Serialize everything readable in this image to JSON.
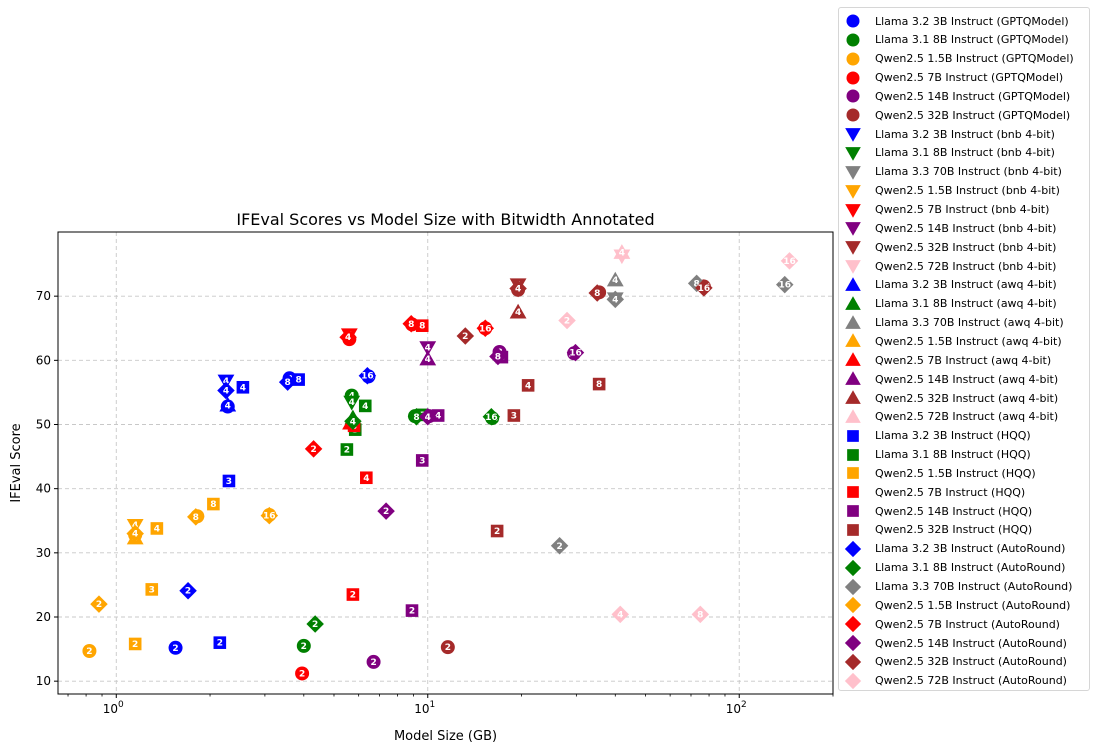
{
  "chart_data": {
    "type": "scatter",
    "title": "IFEval Scores vs Model Size with Bitwidth Annotated",
    "xlabel": "Model Size (GB)",
    "ylabel": "IFEval Score",
    "x_scale": "log",
    "xlim": [
      0.65,
      200
    ],
    "ylim": [
      8,
      80
    ],
    "x_ticks": [
      {
        "value": 1,
        "label": "10",
        "exp": "0"
      },
      {
        "value": 10,
        "label": "10",
        "exp": "1"
      },
      {
        "value": 100,
        "label": "10",
        "exp": "2"
      }
    ],
    "y_ticks": [
      10,
      20,
      30,
      40,
      50,
      60,
      70
    ],
    "grid": true,
    "legend_position": "outside right",
    "series": [
      {
        "name": "Llama 3.2 3B Instruct (GPTQModel)",
        "color": "#0000ff",
        "marker": "circle",
        "points": [
          {
            "x": 1.55,
            "y": 15.2,
            "label": "2"
          },
          {
            "x": 2.28,
            "y": 52.8,
            "label": "4"
          },
          {
            "x": 3.6,
            "y": 57.2,
            "label": "8"
          },
          {
            "x": 6.45,
            "y": 57.5,
            "label": "16"
          }
        ]
      },
      {
        "name": "Llama 3.1 8B Instruct (GPTQModel)",
        "color": "#008000",
        "marker": "circle",
        "points": [
          {
            "x": 4.0,
            "y": 15.5,
            "label": "2"
          },
          {
            "x": 5.7,
            "y": 54.5,
            "label": "4"
          },
          {
            "x": 9.1,
            "y": 51.3,
            "label": "8"
          },
          {
            "x": 16.1,
            "y": 51.0,
            "label": "16"
          }
        ]
      },
      {
        "name": "Qwen2.5 1.5B Instruct (GPTQModel)",
        "color": "#ffa500",
        "marker": "circle",
        "points": [
          {
            "x": 0.82,
            "y": 14.7,
            "label": "2"
          },
          {
            "x": 1.15,
            "y": 32.8,
            "label": "4"
          },
          {
            "x": 1.82,
            "y": 35.7,
            "label": "8"
          },
          {
            "x": 3.1,
            "y": 35.9,
            "label": "16"
          }
        ]
      },
      {
        "name": "Qwen2.5 7B Instruct (GPTQModel)",
        "color": "#ff0000",
        "marker": "circle",
        "points": [
          {
            "x": 3.95,
            "y": 11.2,
            "label": "2"
          },
          {
            "x": 5.6,
            "y": 63.3,
            "label": "4"
          },
          {
            "x": 8.9,
            "y": 65.6,
            "label": "8"
          },
          {
            "x": 15.3,
            "y": 65.0,
            "label": "16"
          }
        ]
      },
      {
        "name": "Qwen2.5 14B Instruct (GPTQModel)",
        "color": "#800080",
        "marker": "circle",
        "points": [
          {
            "x": 6.7,
            "y": 13.0,
            "label": "2"
          },
          {
            "x": 10.1,
            "y": 51.3,
            "label": "4"
          },
          {
            "x": 17.0,
            "y": 61.3,
            "label": "8"
          },
          {
            "x": 29.5,
            "y": 61.1,
            "label": "16"
          }
        ]
      },
      {
        "name": "Qwen2.5 32B Instruct (GPTQModel)",
        "color": "#a52a2a",
        "marker": "circle",
        "points": [
          {
            "x": 11.6,
            "y": 15.3,
            "label": "2"
          },
          {
            "x": 19.5,
            "y": 71.0,
            "label": "4"
          },
          {
            "x": 35.5,
            "y": 70.6,
            "label": "8"
          },
          {
            "x": 77.0,
            "y": 71.5,
            "label": "16"
          }
        ]
      },
      {
        "name": "Llama 3.2 3B Instruct (bnb 4-bit)",
        "color": "#0000ff",
        "marker": "tri-down",
        "points": [
          {
            "x": 2.25,
            "y": 56.8,
            "label": "4"
          }
        ]
      },
      {
        "name": "Llama 3.1 8B Instruct (bnb 4-bit)",
        "color": "#008000",
        "marker": "tri-down",
        "points": [
          {
            "x": 5.7,
            "y": 53.5,
            "label": "4"
          }
        ]
      },
      {
        "name": "Llama 3.3 70B Instruct (bnb 4-bit)",
        "color": "#808080",
        "marker": "tri-down",
        "points": [
          {
            "x": 40.0,
            "y": 69.6,
            "label": "4"
          }
        ]
      },
      {
        "name": "Qwen2.5 1.5B Instruct (bnb 4-bit)",
        "color": "#ffa500",
        "marker": "tri-down",
        "points": [
          {
            "x": 1.15,
            "y": 34.3,
            "label": "4"
          }
        ]
      },
      {
        "name": "Qwen2.5 7B Instruct (bnb 4-bit)",
        "color": "#ff0000",
        "marker": "tri-down",
        "points": [
          {
            "x": 5.6,
            "y": 64.0,
            "label": "4"
          }
        ]
      },
      {
        "name": "Qwen2.5 14B Instruct (bnb 4-bit)",
        "color": "#800080",
        "marker": "tri-down",
        "points": [
          {
            "x": 10.0,
            "y": 62.0,
            "label": "4"
          }
        ]
      },
      {
        "name": "Qwen2.5 32B Instruct (bnb 4-bit)",
        "color": "#a52a2a",
        "marker": "tri-down",
        "points": [
          {
            "x": 19.5,
            "y": 71.8,
            "label": "4"
          }
        ]
      },
      {
        "name": "Qwen2.5 72B Instruct (bnb 4-bit)",
        "color": "#ffc0cb",
        "marker": "tri-down",
        "points": [
          {
            "x": 42.0,
            "y": 76.3,
            "label": "4"
          }
        ]
      },
      {
        "name": "Llama 3.2 3B Instruct (awq 4-bit)",
        "color": "#0000ff",
        "marker": "tri-up",
        "points": [
          {
            "x": 2.28,
            "y": 53.0,
            "label": "4"
          }
        ]
      },
      {
        "name": "Llama 3.1 8B Instruct (awq 4-bit)",
        "color": "#008000",
        "marker": "tri-up",
        "points": [
          {
            "x": 5.75,
            "y": 51.0,
            "label": "4"
          }
        ]
      },
      {
        "name": "Llama 3.3 70B Instruct (awq 4-bit)",
        "color": "#808080",
        "marker": "tri-up",
        "points": [
          {
            "x": 40.0,
            "y": 72.5,
            "label": "4"
          }
        ]
      },
      {
        "name": "Qwen2.5 1.5B Instruct (awq 4-bit)",
        "color": "#ffa500",
        "marker": "tri-up",
        "points": [
          {
            "x": 1.15,
            "y": 32.3,
            "label": "4"
          }
        ]
      },
      {
        "name": "Qwen2.5 7B Instruct (awq 4-bit)",
        "color": "#ff0000",
        "marker": "tri-up",
        "points": [
          {
            "x": 5.65,
            "y": 50.2,
            "label": "4"
          }
        ]
      },
      {
        "name": "Qwen2.5 14B Instruct (awq 4-bit)",
        "color": "#800080",
        "marker": "tri-up",
        "points": [
          {
            "x": 10.0,
            "y": 60.2,
            "label": "4"
          }
        ]
      },
      {
        "name": "Qwen2.5 32B Instruct (awq 4-bit)",
        "color": "#a52a2a",
        "marker": "tri-up",
        "points": [
          {
            "x": 19.5,
            "y": 67.5,
            "label": "4"
          }
        ]
      },
      {
        "name": "Qwen2.5 72B Instruct (awq 4-bit)",
        "color": "#ffc0cb",
        "marker": "tri-up",
        "points": [
          {
            "x": 42.0,
            "y": 76.8,
            "label": "4"
          }
        ]
      },
      {
        "name": "Llama 3.2 3B Instruct (HQQ)",
        "color": "#0000ff",
        "marker": "square",
        "points": [
          {
            "x": 2.15,
            "y": 16.0,
            "label": "2"
          },
          {
            "x": 2.3,
            "y": 41.2,
            "label": "3"
          },
          {
            "x": 2.55,
            "y": 55.8,
            "label": "4"
          },
          {
            "x": 3.85,
            "y": 57.0,
            "label": "8"
          }
        ]
      },
      {
        "name": "Llama 3.1 8B Instruct (HQQ)",
        "color": "#008000",
        "marker": "square",
        "points": [
          {
            "x": 5.5,
            "y": 46.1,
            "label": "2"
          },
          {
            "x": 5.85,
            "y": 49.2,
            "label": "3"
          },
          {
            "x": 6.3,
            "y": 52.9,
            "label": "4"
          },
          {
            "x": 9.6,
            "y": 51.5,
            "label": "8"
          }
        ]
      },
      {
        "name": "Qwen2.5 1.5B Instruct (HQQ)",
        "color": "#ffa500",
        "marker": "square",
        "points": [
          {
            "x": 1.15,
            "y": 15.8,
            "label": "2"
          },
          {
            "x": 1.3,
            "y": 24.3,
            "label": "3"
          },
          {
            "x": 1.35,
            "y": 33.8,
            "label": "4"
          },
          {
            "x": 2.05,
            "y": 37.6,
            "label": "8"
          }
        ]
      },
      {
        "name": "Qwen2.5 7B Instruct (HQQ)",
        "color": "#ff0000",
        "marker": "square",
        "points": [
          {
            "x": 5.75,
            "y": 23.5,
            "label": "2"
          },
          {
            "x": 5.8,
            "y": 49.8,
            "label": "3"
          },
          {
            "x": 6.35,
            "y": 41.7,
            "label": "4"
          },
          {
            "x": 9.6,
            "y": 65.4,
            "label": "8"
          }
        ]
      },
      {
        "name": "Qwen2.5 14B Instruct (HQQ)",
        "color": "#800080",
        "marker": "square",
        "points": [
          {
            "x": 8.9,
            "y": 21.0,
            "label": "2"
          },
          {
            "x": 9.6,
            "y": 44.4,
            "label": "3"
          },
          {
            "x": 10.8,
            "y": 51.4,
            "label": "4"
          },
          {
            "x": 17.3,
            "y": 60.5,
            "label": "8"
          }
        ]
      },
      {
        "name": "Qwen2.5 32B Instruct (HQQ)",
        "color": "#a52a2a",
        "marker": "square",
        "points": [
          {
            "x": 16.7,
            "y": 33.4,
            "label": "2"
          },
          {
            "x": 18.9,
            "y": 51.4,
            "label": "3"
          },
          {
            "x": 21.0,
            "y": 56.1,
            "label": "4"
          },
          {
            "x": 35.5,
            "y": 56.3,
            "label": "8"
          }
        ]
      },
      {
        "name": "Llama 3.2 3B Instruct (AutoRound)",
        "color": "#0000ff",
        "marker": "diamond",
        "points": [
          {
            "x": 1.7,
            "y": 24.1,
            "label": "2"
          },
          {
            "x": 2.25,
            "y": 55.3,
            "label": "4"
          },
          {
            "x": 3.55,
            "y": 56.6,
            "label": "8"
          },
          {
            "x": 6.4,
            "y": 57.6,
            "label": "16"
          }
        ]
      },
      {
        "name": "Llama 3.1 8B Instruct (AutoRound)",
        "color": "#008000",
        "marker": "diamond",
        "points": [
          {
            "x": 4.35,
            "y": 18.9,
            "label": "2"
          },
          {
            "x": 5.75,
            "y": 50.5,
            "label": "4"
          },
          {
            "x": 9.2,
            "y": 51.2,
            "label": "8"
          },
          {
            "x": 16.0,
            "y": 51.2,
            "label": "16"
          }
        ]
      },
      {
        "name": "Llama 3.3 70B Instruct (AutoRound)",
        "color": "#808080",
        "marker": "diamond",
        "points": [
          {
            "x": 26.5,
            "y": 31.1,
            "label": "2"
          },
          {
            "x": 40.0,
            "y": 69.5,
            "label": "4"
          },
          {
            "x": 73.0,
            "y": 72.0,
            "label": "8"
          },
          {
            "x": 140.0,
            "y": 71.8,
            "label": "16"
          }
        ]
      },
      {
        "name": "Qwen2.5 1.5B Instruct (AutoRound)",
        "color": "#ffa500",
        "marker": "diamond",
        "points": [
          {
            "x": 0.88,
            "y": 22.0,
            "label": "2"
          },
          {
            "x": 1.15,
            "y": 33.0,
            "label": "4"
          },
          {
            "x": 1.8,
            "y": 35.6,
            "label": "8"
          },
          {
            "x": 3.1,
            "y": 35.8,
            "label": "16"
          }
        ]
      },
      {
        "name": "Qwen2.5 7B Instruct (AutoRound)",
        "color": "#ff0000",
        "marker": "diamond",
        "points": [
          {
            "x": 4.3,
            "y": 46.2,
            "label": "2"
          },
          {
            "x": 5.55,
            "y": 63.6,
            "label": "4"
          },
          {
            "x": 8.85,
            "y": 65.7,
            "label": "8"
          },
          {
            "x": 15.3,
            "y": 65.0,
            "label": "16"
          }
        ]
      },
      {
        "name": "Qwen2.5 14B Instruct (AutoRound)",
        "color": "#800080",
        "marker": "diamond",
        "points": [
          {
            "x": 7.35,
            "y": 36.5,
            "label": "2"
          },
          {
            "x": 10.0,
            "y": 51.2,
            "label": "4"
          },
          {
            "x": 16.8,
            "y": 60.6,
            "label": "8"
          },
          {
            "x": 29.8,
            "y": 61.2,
            "label": "16"
          }
        ]
      },
      {
        "name": "Qwen2.5 32B Instruct (AutoRound)",
        "color": "#a52a2a",
        "marker": "diamond",
        "points": [
          {
            "x": 13.2,
            "y": 63.8,
            "label": "2"
          },
          {
            "x": 19.5,
            "y": 71.2,
            "label": "4"
          },
          {
            "x": 35.0,
            "y": 70.5,
            "label": "8"
          },
          {
            "x": 77.0,
            "y": 71.3,
            "label": "16"
          }
        ]
      },
      {
        "name": "Qwen2.5 72B Instruct (AutoRound)",
        "color": "#ffc0cb",
        "marker": "diamond",
        "points": [
          {
            "x": 28.0,
            "y": 66.2,
            "label": "2"
          },
          {
            "x": 41.5,
            "y": 20.4,
            "label": "4"
          },
          {
            "x": 75.0,
            "y": 20.4,
            "label": "8"
          },
          {
            "x": 145.0,
            "y": 75.5,
            "label": "16"
          }
        ]
      }
    ]
  }
}
